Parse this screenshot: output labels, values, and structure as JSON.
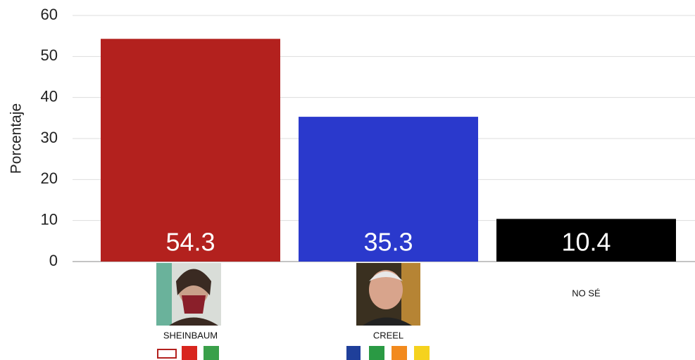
{
  "chart_data": {
    "type": "bar",
    "y_label": "Porcentaje",
    "categories": [
      "SHEINBAUM",
      "CREEL",
      "NO SÉ"
    ],
    "values": [
      54.3,
      35.3,
      10.4
    ],
    "colors": [
      "#b3211e",
      "#2a39cc",
      "#000000"
    ],
    "ylim": [
      0,
      60
    ],
    "yticks": [
      0,
      10,
      20,
      30,
      40,
      50,
      60
    ],
    "grid": true
  }
}
